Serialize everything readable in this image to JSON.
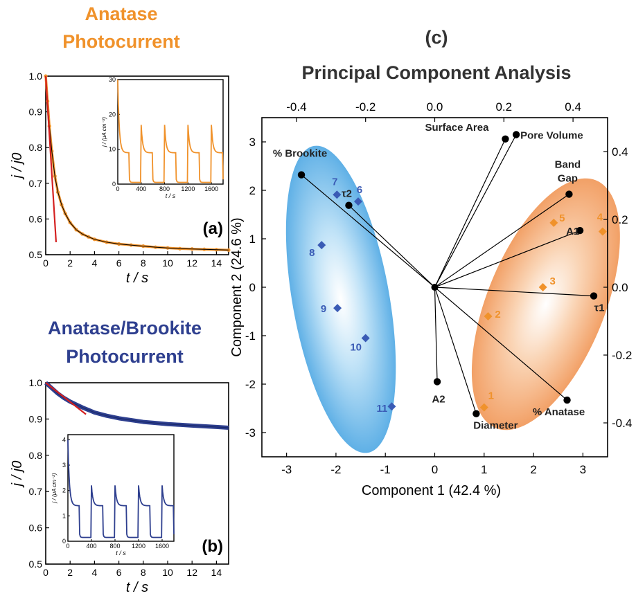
{
  "colors": {
    "anatase": "#F0922B",
    "brookite": "#2E3F8F",
    "brookite_marker": "#3A5BB5",
    "fit_line": "#D42020",
    "anatase_ellipse": "#F6B98A",
    "brookite_ellipse": "#5FB0E6",
    "axis": "#000000"
  },
  "chart_data": [
    {
      "panel": "(a)",
      "type": "line",
      "title_line1": "Anatase",
      "title_line2": "Photocurrent",
      "xlabel": "t / s",
      "ylabel": "j / j0",
      "xlim": [
        0,
        15
      ],
      "ylim": [
        0.5,
        1.0
      ],
      "xticks": [
        "0",
        "2",
        "4",
        "6",
        "8",
        "10",
        "12",
        "14"
      ],
      "yticks": [
        "0.5",
        "0.6",
        "0.7",
        "0.8",
        "0.9",
        "1.0"
      ],
      "series": [
        {
          "kind": "data",
          "x": [
            0,
            0.15,
            0.3,
            0.5,
            0.75,
            1.0,
            1.3,
            1.6,
            2.0,
            2.5,
            3.0,
            3.5,
            4.0,
            5.0,
            6.0,
            7.0,
            8.0,
            9.0,
            10.0,
            11.0,
            12.0,
            13.0,
            14.0,
            15.0
          ],
          "y": [
            1.0,
            0.93,
            0.86,
            0.79,
            0.72,
            0.675,
            0.64,
            0.615,
            0.59,
            0.57,
            0.558,
            0.55,
            0.543,
            0.535,
            0.53,
            0.527,
            0.524,
            0.521,
            0.519,
            0.517,
            0.516,
            0.515,
            0.514,
            0.513
          ]
        },
        {
          "kind": "linear-fit",
          "x": [
            0,
            0.85
          ],
          "y": [
            1.0,
            0.535
          ]
        }
      ],
      "inset": {
        "type": "line",
        "xlabel": "t / s",
        "ylabel": "j / (μA cm⁻²)",
        "xlim": [
          0,
          1800
        ],
        "ylim": [
          0,
          30
        ],
        "xticks": [
          "0",
          "400",
          "800",
          "1200",
          "1600"
        ],
        "yticks": [
          "0",
          "10",
          "20",
          "30"
        ],
        "pulses": {
          "period": 200,
          "first_on_peak": 30,
          "peak": 17,
          "plateau": 9,
          "baseline": 0.5,
          "count": 7
        }
      }
    },
    {
      "panel": "(b)",
      "type": "line",
      "title_line1": "Anatase/Brookite",
      "title_line2": "Photocurrent",
      "xlabel": "t / s",
      "ylabel": "j / j0",
      "xlim": [
        0,
        15
      ],
      "ylim": [
        0.5,
        1.0
      ],
      "xticks": [
        "0",
        "2",
        "4",
        "6",
        "8",
        "10",
        "12",
        "14"
      ],
      "yticks": [
        "0.5",
        "0.6",
        "0.7",
        "0.8",
        "0.9",
        "1.0"
      ],
      "series": [
        {
          "kind": "data",
          "x": [
            0,
            0.5,
            1.0,
            1.5,
            2.0,
            2.5,
            3.0,
            4.0,
            5.0,
            6.0,
            7.0,
            8.0,
            9.0,
            10.0,
            11.0,
            12.0,
            13.0,
            14.0,
            15.0
          ],
          "y": [
            1.0,
            0.985,
            0.97,
            0.958,
            0.948,
            0.94,
            0.932,
            0.918,
            0.909,
            0.902,
            0.897,
            0.892,
            0.889,
            0.886,
            0.884,
            0.882,
            0.88,
            0.878,
            0.876
          ]
        },
        {
          "kind": "linear-fit",
          "x": [
            0,
            3.3
          ],
          "y": [
            1.0,
            0.913
          ]
        }
      ],
      "inset": {
        "type": "line",
        "xlabel": "t / s",
        "ylabel": "j / (μA cm⁻²)",
        "xlim": [
          0,
          1800
        ],
        "ylim": [
          0,
          4.2
        ],
        "xticks": [
          "0",
          "400",
          "800",
          "1200",
          "1600"
        ],
        "yticks": [
          "0",
          "1",
          "2",
          "3",
          "4"
        ],
        "pulses": {
          "period": 200,
          "first_on_peak": 4.0,
          "peak": 2.2,
          "plateau": 1.4,
          "baseline": 0.15,
          "count": 7
        }
      }
    },
    {
      "panel": "(c)",
      "type": "scatter",
      "title": "Principal Component Analysis",
      "xlabel": "Component 1 (42.4 %)",
      "ylabel": "Component 2 (24.6 %)",
      "xlim": [
        -3.5,
        3.5
      ],
      "ylim": [
        -3.5,
        3.5
      ],
      "xticks": [
        "-3",
        "-2",
        "-1",
        "0",
        "1",
        "2",
        "3"
      ],
      "yticks": [
        "-3",
        "-2",
        "-1",
        "0",
        "1",
        "2",
        "3"
      ],
      "top_ticks": [
        "-0.4",
        "-0.2",
        "0.0",
        "0.2",
        "0.4"
      ],
      "right_ticks": [
        "-0.4",
        "-0.2",
        "0.0",
        "0.2",
        "0.4"
      ],
      "scores": [
        {
          "label": "1",
          "x": 1.0,
          "y": -2.48,
          "group": "anatase"
        },
        {
          "label": "2",
          "x": 1.08,
          "y": -0.6,
          "group": "anatase"
        },
        {
          "label": "3",
          "x": 2.19,
          "y": 0.0,
          "group": "anatase"
        },
        {
          "label": "4",
          "x": 3.4,
          "y": 1.15,
          "group": "anatase"
        },
        {
          "label": "5",
          "x": 2.41,
          "y": 1.33,
          "group": "anatase"
        },
        {
          "label": "6",
          "x": -1.55,
          "y": 1.77,
          "group": "brookite"
        },
        {
          "label": "7",
          "x": -1.98,
          "y": 1.91,
          "group": "brookite"
        },
        {
          "label": "8",
          "x": -2.29,
          "y": 0.87,
          "group": "brookite"
        },
        {
          "label": "9",
          "x": -1.97,
          "y": -0.43,
          "group": "brookite"
        },
        {
          "label": "10",
          "x": -1.4,
          "y": -1.05,
          "group": "brookite"
        },
        {
          "label": "11",
          "x": -0.87,
          "y": -2.46,
          "group": "brookite"
        }
      ],
      "loadings": [
        {
          "label": "% Brookite",
          "x": -2.7,
          "y": 2.32
        },
        {
          "label": "τ2",
          "x": -1.74,
          "y": 1.69
        },
        {
          "label": "Surface Area",
          "x": 1.43,
          "y": 3.06
        },
        {
          "label": "Pore Volume",
          "x": 1.65,
          "y": 3.15
        },
        {
          "label": "Band Gap",
          "x": 2.72,
          "y": 1.92
        },
        {
          "label": "A1",
          "x": 2.94,
          "y": 1.17
        },
        {
          "label": "τ1",
          "x": 3.22,
          "y": -0.18
        },
        {
          "label": "% Anatase",
          "x": 2.68,
          "y": -2.33
        },
        {
          "label": "Diameter",
          "x": 0.84,
          "y": -2.61
        },
        {
          "label": "A2",
          "x": 0.05,
          "y": -1.95
        }
      ]
    }
  ]
}
